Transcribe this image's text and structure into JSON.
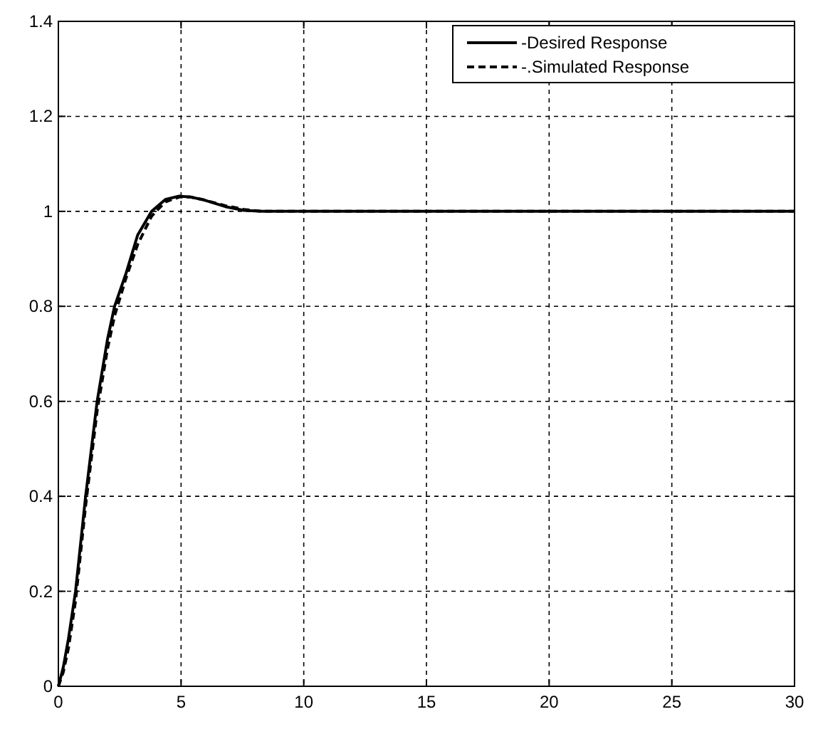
{
  "chart_data": {
    "type": "line",
    "xlim": [
      0,
      30
    ],
    "ylim": [
      0,
      1.4
    ],
    "xticks": [
      0,
      5,
      10,
      15,
      20,
      25,
      30
    ],
    "yticks": [
      0,
      0.2,
      0.4,
      0.6,
      0.8,
      1,
      1.2,
      1.4
    ],
    "grid": true,
    "legend": "top right",
    "series": [
      {
        "name": "-Desired Response",
        "color": "#000000",
        "line_style": "solid",
        "x": [
          0,
          0.2,
          0.41,
          0.7,
          1.11,
          1.58,
          2.0,
          2.29,
          2.76,
          3.23,
          3.8,
          4.36,
          4.92,
          5.4,
          5.86,
          6.8,
          7.56,
          8.3,
          10,
          15,
          20,
          25,
          30
        ],
        "values": [
          0,
          0.04,
          0.1,
          0.2,
          0.4,
          0.6,
          0.73,
          0.8,
          0.87,
          0.95,
          1.0,
          1.025,
          1.032,
          1.03,
          1.025,
          1.01,
          1.002,
          1.0,
          1.0,
          1.0,
          1.0,
          1.0,
          1.0
        ]
      },
      {
        "name": "-.Simulated Response",
        "color": "#000000",
        "line_style": "dashed",
        "x": [
          0,
          0.2,
          0.41,
          0.7,
          1.11,
          1.58,
          2.0,
          2.29,
          2.76,
          3.23,
          3.8,
          4.36,
          4.92,
          5.4,
          5.86,
          6.8,
          7.56,
          8.3,
          10,
          15,
          20,
          25,
          30
        ],
        "values": [
          0,
          0.03,
          0.08,
          0.18,
          0.38,
          0.58,
          0.71,
          0.78,
          0.86,
          0.93,
          0.99,
          1.02,
          1.03,
          1.03,
          1.025,
          1.012,
          1.004,
          1.0,
          1.0,
          1.0,
          1.0,
          1.0,
          1.0
        ]
      }
    ]
  }
}
